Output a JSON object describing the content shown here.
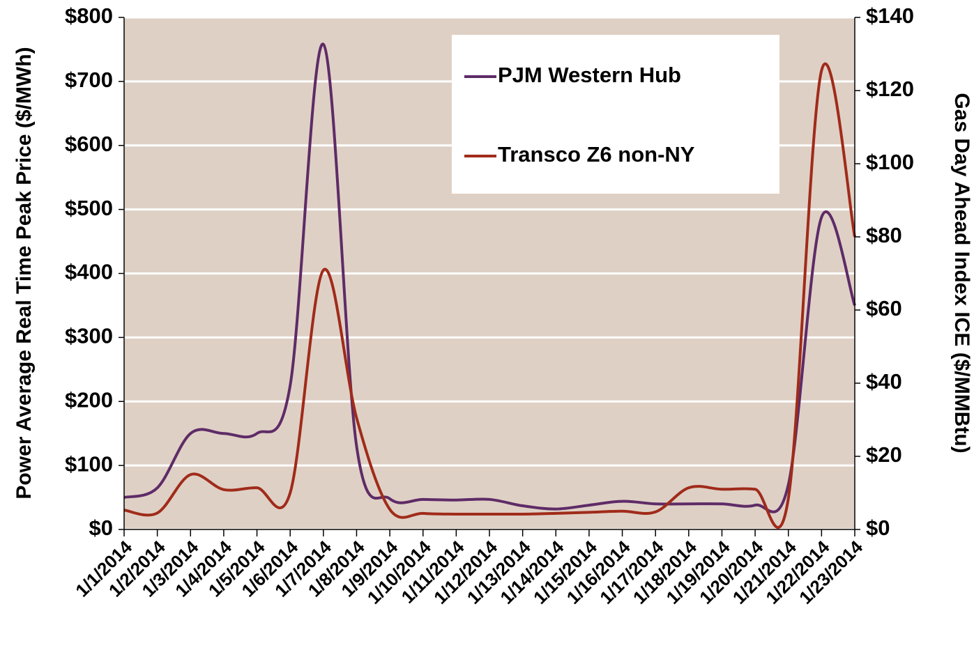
{
  "chart_data": {
    "type": "line",
    "categories": [
      "1/1/2014",
      "1/2/2014",
      "1/3/2014",
      "1/4/2014",
      "1/5/2014",
      "1/6/2014",
      "1/7/2014",
      "1/8/2014",
      "1/9/2014",
      "1/10/2014",
      "1/11/2014",
      "1/12/2014",
      "1/13/2014",
      "1/14/2014",
      "1/15/2014",
      "1/16/2014",
      "1/17/2014",
      "1/18/2014",
      "1/19/2014",
      "1/20/2014",
      "1/21/2014",
      "1/22/2014",
      "1/23/2014"
    ],
    "y_label": "Power Average Real Time Peak Price ($/MWh)",
    "y2_label": "Gas Day Ahead Index ICE ($/MMBtu)",
    "ylim": [
      0,
      800
    ],
    "yticks": [
      {
        "value": 0,
        "label": "$0"
      },
      {
        "value": 100,
        "label": "$100"
      },
      {
        "value": 200,
        "label": "$200"
      },
      {
        "value": 300,
        "label": "$300"
      },
      {
        "value": 400,
        "label": "$400"
      },
      {
        "value": 500,
        "label": "$500"
      },
      {
        "value": 600,
        "label": "$600"
      },
      {
        "value": 700,
        "label": "$700"
      },
      {
        "value": 800,
        "label": "$800"
      }
    ],
    "y2lim": [
      0,
      140
    ],
    "y2ticks": [
      {
        "value": 0,
        "label": "$0"
      },
      {
        "value": 20,
        "label": "$20"
      },
      {
        "value": 40,
        "label": "$40"
      },
      {
        "value": 60,
        "label": "$60"
      },
      {
        "value": 80,
        "label": "$80"
      },
      {
        "value": 100,
        "label": "$100"
      },
      {
        "value": 120,
        "label": "$120"
      },
      {
        "value": 140,
        "label": "$140"
      }
    ],
    "grid": true,
    "legend": "upper right",
    "series": [
      {
        "name": "PJM Western Hub",
        "color": "#5e2b67",
        "axis": "y",
        "values": [
          50,
          65,
          150,
          150,
          150,
          225,
          758,
          130,
          48,
          47,
          46,
          47,
          37,
          32,
          38,
          44,
          40,
          40,
          40,
          38,
          70,
          488,
          350
        ]
      },
      {
        "name": "Transco Z6 non-NY",
        "color": "#a02b1a",
        "axis": "y2",
        "values": [
          5.3,
          4.5,
          15,
          10.9,
          11.4,
          10,
          70.9,
          30.5,
          5.5,
          4.4,
          4.2,
          4.2,
          4.2,
          4.4,
          4.7,
          5,
          4.8,
          11.4,
          11,
          11,
          8.5,
          125.5,
          80
        ]
      }
    ]
  }
}
